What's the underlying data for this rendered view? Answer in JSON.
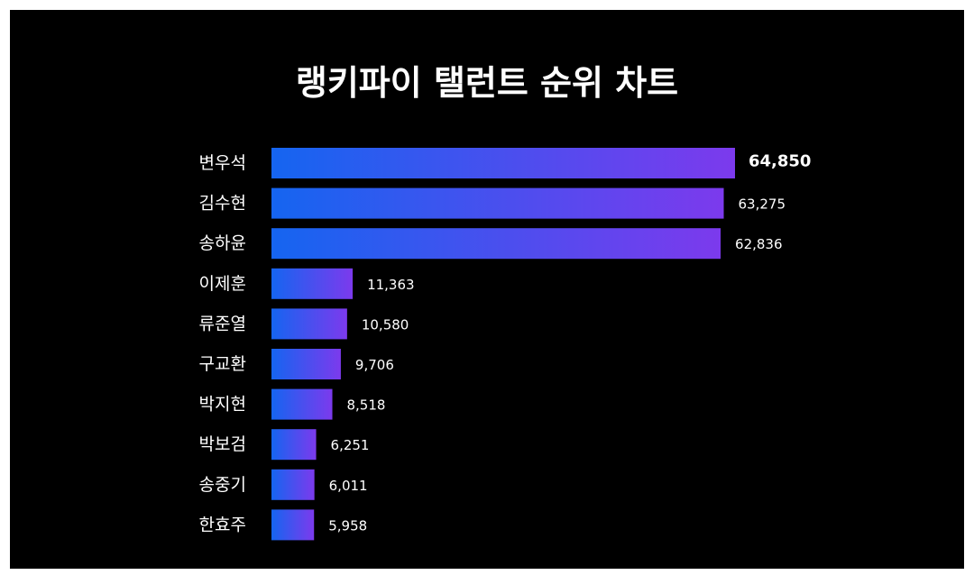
{
  "chart_data": {
    "type": "bar",
    "orientation": "horizontal",
    "title": "랭키파이 탤런트 순위 차트",
    "xlabel": "",
    "ylabel": "",
    "grid": false,
    "legend": "none",
    "categories": [
      "변우석",
      "김수현",
      "송하윤",
      "이제훈",
      "류준열",
      "구교환",
      "박지현",
      "박보검",
      "송중기",
      "한효주"
    ],
    "values": [
      64850,
      63275,
      62836,
      11363,
      10580,
      9706,
      8518,
      6251,
      6011,
      5958
    ],
    "value_labels": [
      "64,850",
      "63,275",
      "62,836",
      "11,363",
      "10,580",
      "9,706",
      "8,518",
      "6,251",
      "6,011",
      "5,958"
    ],
    "colors": {
      "background": "#000000",
      "text": "#ffffff",
      "bar_gradient_start": "#1565f0",
      "bar_gradient_end": "#7c3aed"
    }
  }
}
